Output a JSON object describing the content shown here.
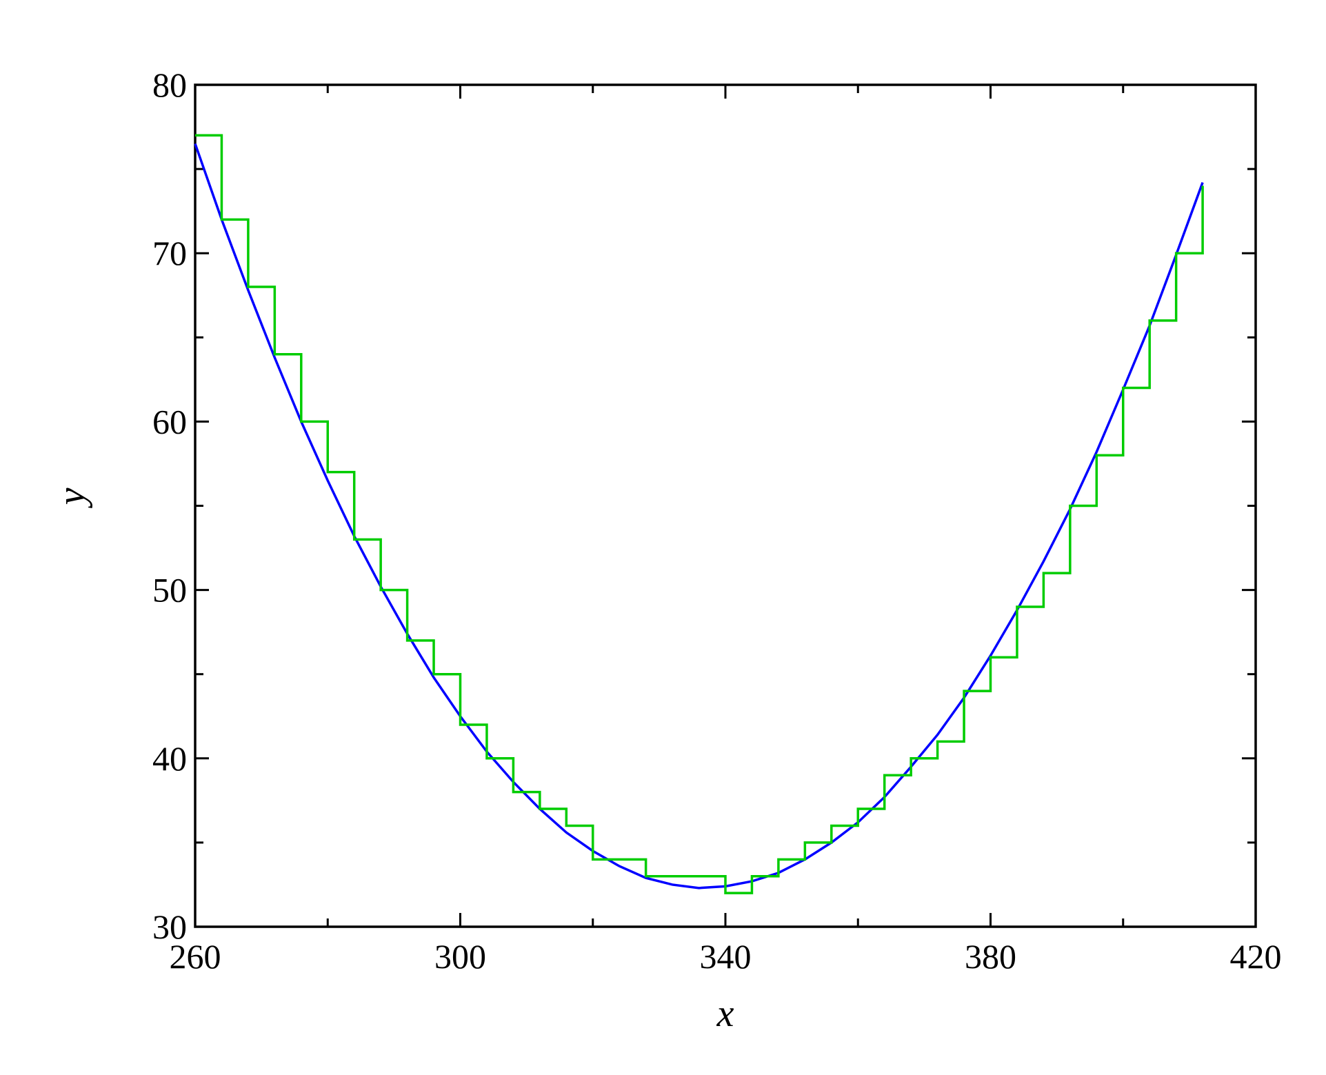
{
  "chart_data": {
    "type": "line",
    "xlabel": "x",
    "ylabel": "y",
    "x": [
      260,
      264,
      268,
      272,
      276,
      280,
      284,
      288,
      292,
      296,
      300,
      304,
      308,
      312,
      316,
      320,
      324,
      328,
      332,
      336,
      340,
      344,
      348,
      352,
      356,
      360,
      364,
      368,
      372,
      376,
      380,
      384,
      388,
      392,
      396,
      400,
      404,
      408,
      412
    ],
    "series": [
      {
        "color": "#0000ff",
        "drawstyle": "line",
        "values": [
          76.5,
          72.0,
          67.8,
          63.8,
          60.0,
          56.5,
          53.2,
          50.2,
          47.4,
          44.8,
          42.5,
          40.4,
          38.6,
          37.0,
          35.6,
          34.5,
          33.6,
          32.9,
          32.5,
          32.3,
          32.4,
          32.7,
          33.2,
          34.0,
          35.0,
          36.2,
          37.7,
          39.5,
          41.4,
          43.6,
          46.1,
          48.8,
          51.7,
          54.8,
          58.2,
          61.9,
          65.7,
          69.9,
          74.2
        ]
      },
      {
        "color": "#00cc00",
        "drawstyle": "steps-post",
        "values": [
          77,
          72,
          68,
          64,
          60,
          57,
          53,
          50,
          47,
          45,
          42,
          40,
          38,
          37,
          36,
          34,
          34,
          33,
          33,
          33,
          32,
          33,
          34,
          35,
          36,
          37,
          39,
          40,
          41,
          44,
          46,
          49,
          51,
          55,
          58,
          62,
          66,
          70,
          74
        ]
      }
    ],
    "xlim": [
      260,
      420
    ],
    "xticks": [
      260,
      300,
      340,
      380,
      420
    ],
    "xminorticks": [
      280,
      320,
      360,
      400
    ],
    "ylim": [
      30,
      80
    ],
    "yticks": [
      30,
      40,
      50,
      60,
      70,
      80
    ],
    "yminorticks": [
      35,
      45,
      55,
      65,
      75
    ]
  }
}
